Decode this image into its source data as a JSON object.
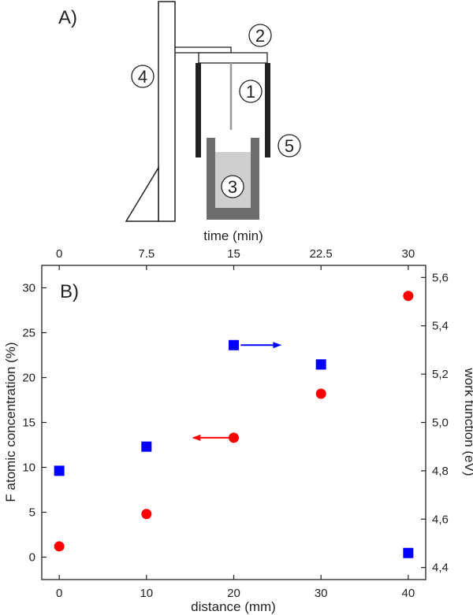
{
  "panel_a": {
    "label": "A)",
    "parts": [
      "1",
      "2",
      "3",
      "4",
      "5"
    ]
  },
  "chart_data": {
    "type": "scatter",
    "panel_label": "B)",
    "xlabel": "distance (mm)",
    "x_top_label": "time (min)",
    "ylabel_left": "F atomic concentration (%)",
    "ylabel_right": "work function (eV)",
    "xlim": [
      -2,
      42
    ],
    "ylim_left": [
      -2.5,
      32.5
    ],
    "ylim_right": [
      4.35,
      5.65
    ],
    "x_ticks": [
      0,
      10,
      20,
      30,
      40
    ],
    "x_top_ticks": [
      "0",
      "7.5",
      "15",
      "22.5",
      "30"
    ],
    "y_left_ticks": [
      "0",
      "5",
      "10",
      "15",
      "20",
      "25",
      "30"
    ],
    "y_right_ticks": [
      "4,4",
      "4,6",
      "4,8",
      "5,0",
      "5,2",
      "5,4",
      "5,6"
    ],
    "series": [
      {
        "marker": "circle",
        "color": "#ff0000",
        "axis": "left",
        "x": [
          0,
          10,
          20,
          30,
          40
        ],
        "y": [
          1.2,
          4.8,
          13.3,
          18.2,
          29.1
        ]
      },
      {
        "marker": "square",
        "color": "#0000ff",
        "axis": "right",
        "x": [
          0,
          10,
          20,
          30,
          40
        ],
        "y": [
          4.8,
          4.9,
          5.32,
          5.24,
          4.46
        ]
      }
    ],
    "arrows": [
      {
        "color": "#ff0000",
        "direction": "left",
        "axis": "left",
        "x": [
          20,
          15.2
        ],
        "y": 13.3
      },
      {
        "color": "#0000ff",
        "direction": "right",
        "axis": "right",
        "x": [
          20.8,
          25.5
        ],
        "y": 5.32
      }
    ]
  }
}
